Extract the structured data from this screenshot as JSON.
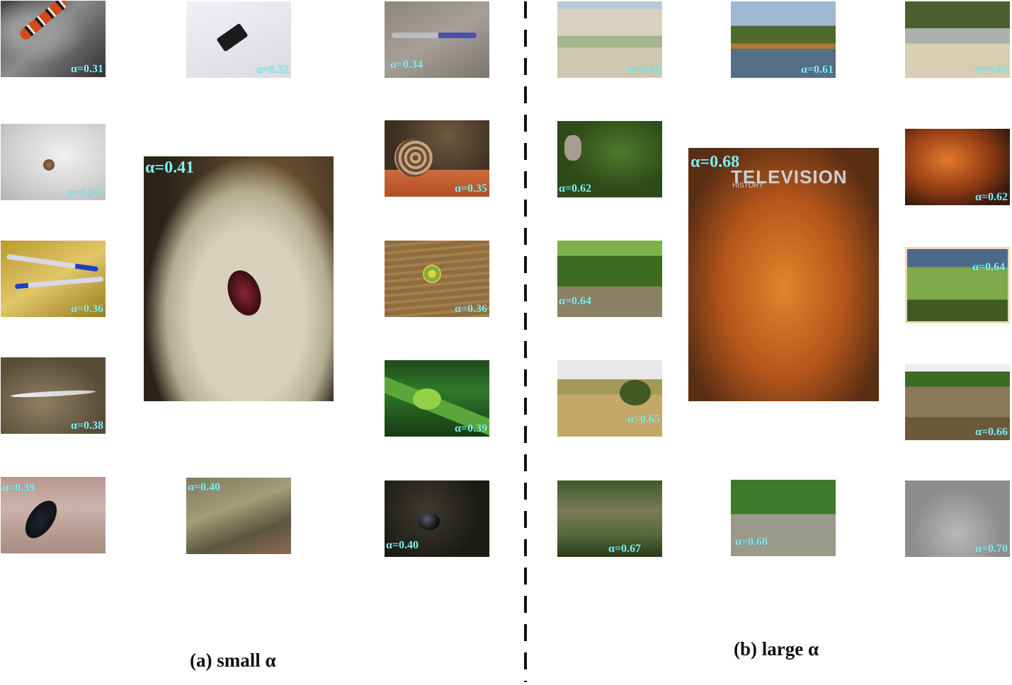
{
  "panel_a": {
    "caption": "(a) small α",
    "tiles": [
      {
        "id": "snake",
        "label": "α=0.31"
      },
      {
        "id": "car",
        "label": "α=0.32"
      },
      {
        "id": "screw",
        "label": "α=0.34"
      },
      {
        "id": "hermit",
        "label": "α=0.34"
      },
      {
        "id": "fly",
        "label": "α=0.41"
      },
      {
        "id": "snail",
        "label": "α=0.35"
      },
      {
        "id": "pens",
        "label": "α=0.36"
      },
      {
        "id": "clip",
        "label": "α=0.36"
      },
      {
        "id": "fish",
        "label": "α=0.38"
      },
      {
        "id": "frog",
        "label": "α=0.39"
      },
      {
        "id": "beetle",
        "label": "α=0.39"
      },
      {
        "id": "rock",
        "label": "α=0.40"
      },
      {
        "id": "dung",
        "label": "α=0.40"
      }
    ]
  },
  "panel_b": {
    "caption": "(b) large α",
    "puzzle_text": "TELEVISION",
    "puzzle_subtext": "HISTORY",
    "tiles": [
      {
        "id": "beach",
        "label": "α=0.60"
      },
      {
        "id": "lake1",
        "label": "α=0.61"
      },
      {
        "id": "coast",
        "label": "α=0.61"
      },
      {
        "id": "koala",
        "label": "α=0.62"
      },
      {
        "id": "puzzle",
        "label": "α=0.68"
      },
      {
        "id": "leaves",
        "label": "α=0.62"
      },
      {
        "id": "forest",
        "label": "α=0.64"
      },
      {
        "id": "plant",
        "label": "α=0.64"
      },
      {
        "id": "field",
        "label": "α=0.65"
      },
      {
        "id": "dirt",
        "label": "α=0.66"
      },
      {
        "id": "valley",
        "label": "α=0.67"
      },
      {
        "id": "river",
        "label": "α=0.68"
      },
      {
        "id": "fog",
        "label": "α=0.70"
      }
    ]
  },
  "colors": {
    "label": "#7ff2f2",
    "divider": "#111111"
  }
}
